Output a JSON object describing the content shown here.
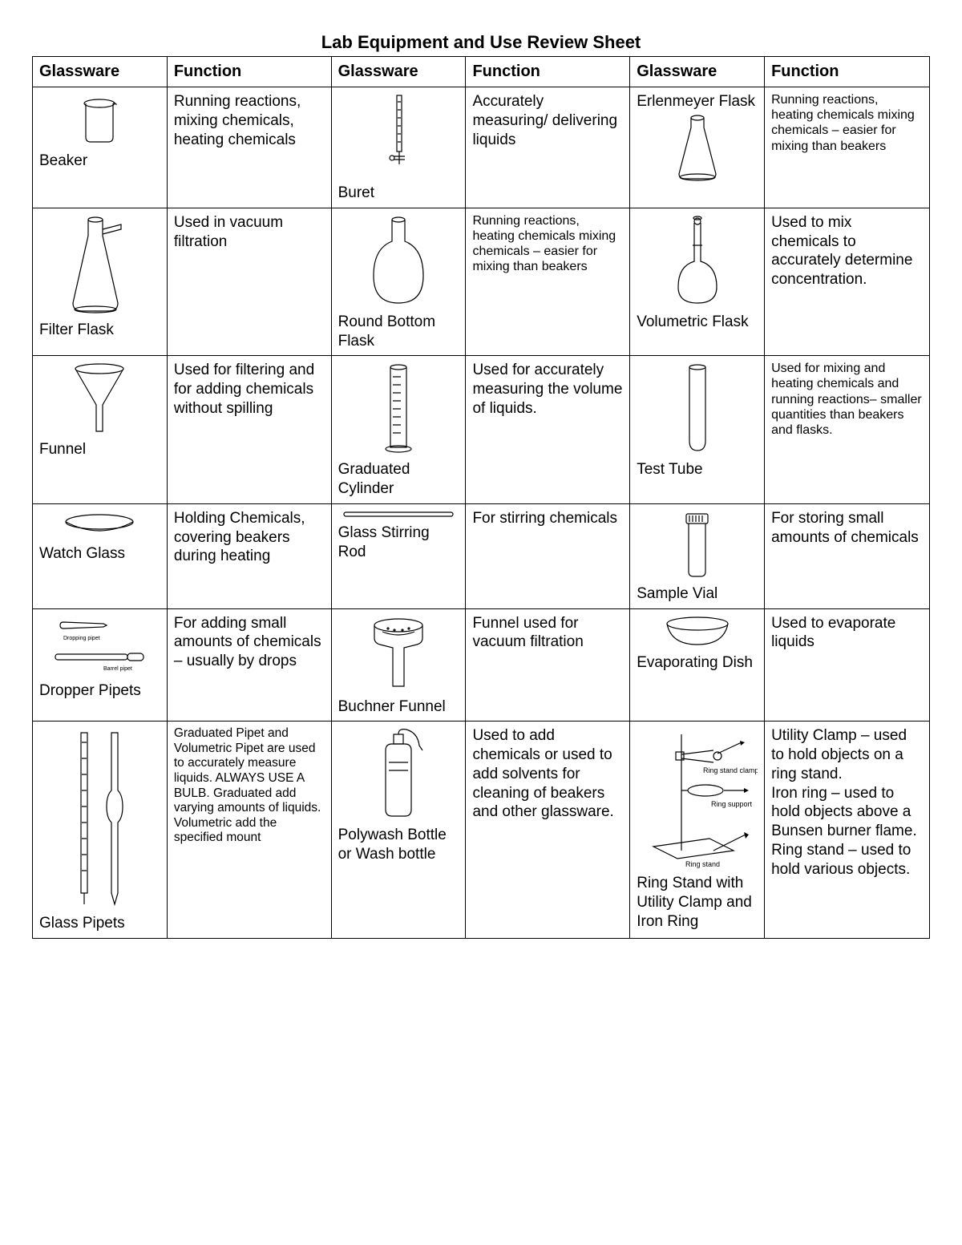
{
  "title": "Lab Equipment and Use Review Sheet",
  "headers": [
    "Glassware",
    "Function",
    "Glassware",
    "Function",
    "Glassware",
    "Function"
  ],
  "col_widths": [
    "15%",
    "18.3%",
    "15%",
    "18.3%",
    "15%",
    "18.4%"
  ],
  "stroke": "#000000",
  "fill": "#ffffff",
  "rows": [
    {
      "c0": {
        "label": "Beaker",
        "icon": "beaker"
      },
      "f0": "Running reactions, mixing chemicals, heating chemicals",
      "c1": {
        "label": "Buret",
        "icon": "buret"
      },
      "f1": "Accurately measuring/ delivering liquids",
      "c2": {
        "label": "Erlenmeyer Flask",
        "icon": "erlenmeyer",
        "label_top": true
      },
      "f2": "Running reactions, heating chemicals mixing chemicals – easier for mixing than beakers",
      "f2_class": "small"
    },
    {
      "c0": {
        "label": "Filter Flask",
        "icon": "filterflask"
      },
      "f0": "Used in vacuum filtration",
      "c1": {
        "label": "Round Bottom Flask",
        "icon": "roundbottom"
      },
      "f1": "Running reactions, heating chemicals mixing chemicals – easier for mixing than beakers",
      "f1_class": "small",
      "c2": {
        "label": "Volumetric Flask",
        "icon": "volumetric"
      },
      "f2": "Used to mix chemicals to accurately determine concentration."
    },
    {
      "c0": {
        "label": "Funnel",
        "icon": "funnel"
      },
      "f0": "Used for filtering and for adding chemicals without spilling",
      "c1": {
        "label": "Graduated Cylinder",
        "icon": "gradcyl"
      },
      "f1": "Used for accurately measuring the volume of liquids.",
      "c2": {
        "label": "Test Tube",
        "icon": "testtube"
      },
      "f2": "Used for mixing and heating chemicals and running reactions– smaller quantities than beakers and flasks.",
      "f2_class": "small"
    },
    {
      "c0": {
        "label": "Watch Glass",
        "icon": "watchglass"
      },
      "f0": "Holding Chemicals, covering beakers during heating",
      "c1": {
        "label": "Glass Stirring Rod",
        "icon": "stirrod",
        "label_top": false,
        "label_beside": true
      },
      "f1": "For stirring chemicals",
      "c2": {
        "label": "Sample Vial",
        "icon": "vial"
      },
      "f2": "For storing small amounts of chemicals"
    },
    {
      "c0": {
        "label": "Dropper Pipets",
        "icon": "dropper"
      },
      "f0": "For adding small amounts of chemicals – usually by drops",
      "c1": {
        "label": "Buchner Funnel",
        "icon": "buchner"
      },
      "f1": "Funnel used for vacuum filtration",
      "c2": {
        "label": "Evaporating Dish",
        "icon": "evapdish"
      },
      "f2": "Used to evaporate liquids"
    },
    {
      "c0": {
        "label": "Glass Pipets",
        "icon": "pipets"
      },
      "f0": "Graduated Pipet and Volumetric Pipet are used to accurately measure liquids. ALWAYS USE A BULB. Graduated add varying amounts of liquids. Volumetric add the specified mount",
      "f0_class": "xsmall",
      "c1": {
        "label": "Polywash Bottle or Wash bottle",
        "icon": "washbottle"
      },
      "f1": "Used to add chemicals or used to add solvents for cleaning of beakers and other glassware.",
      "c2": {
        "label": "Ring Stand with Utility Clamp and Iron Ring",
        "icon": "ringstand"
      },
      "f2": "Utility Clamp – used to hold objects on a ring stand.\nIron ring – used to hold objects above a Bunsen burner flame.\nRing stand – used to hold various objects."
    }
  ]
}
